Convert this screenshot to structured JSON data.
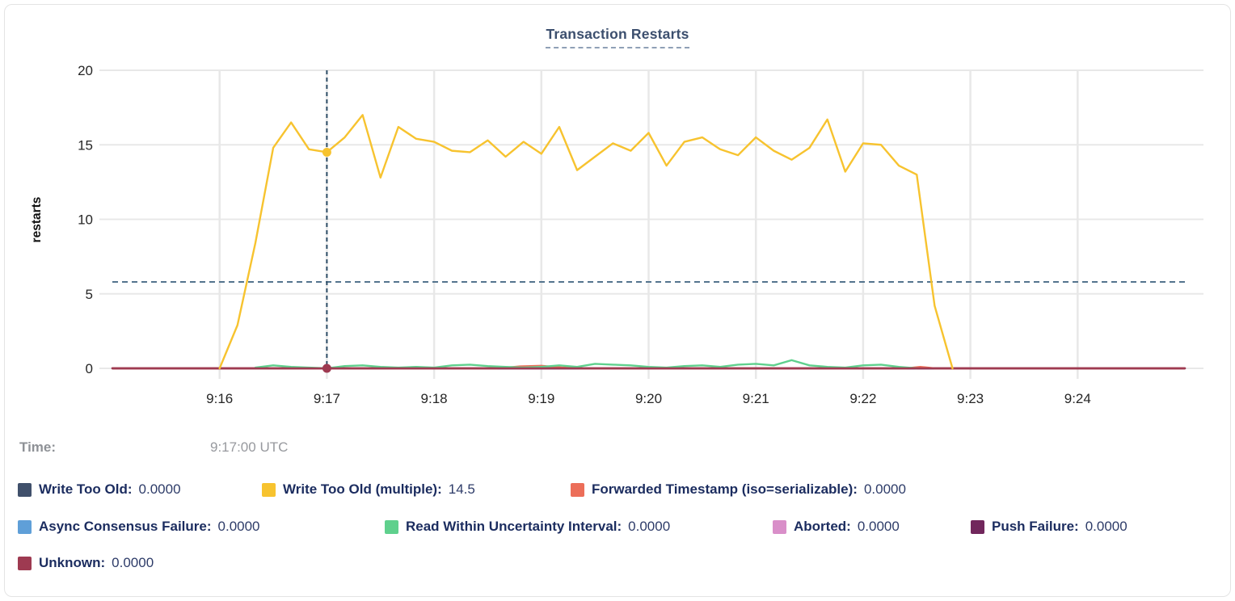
{
  "chart_data": {
    "type": "line",
    "title": "Transaction Restarts",
    "ylabel": "restarts",
    "ylim": [
      0,
      20
    ],
    "yticks": [
      0,
      5,
      10,
      15,
      20
    ],
    "xticks": [
      "9:16",
      "9:17",
      "9:18",
      "9:19",
      "9:20",
      "9:21",
      "9:22",
      "9:23",
      "9:24"
    ],
    "x_domain": [
      "9:15:00",
      "9:25:00"
    ],
    "grid": true,
    "threshold_line": {
      "value": 5.8,
      "style": "dashed",
      "color": "#54748E"
    },
    "hover": {
      "time": "9:17:00 UTC",
      "cursor_x": "9:17:00",
      "line_color": "#2F4F68",
      "dots": [
        {
          "series": "Write Too Old (multiple)",
          "value": 14.5,
          "color": "#F7C32F"
        },
        {
          "series": "Unknown",
          "value": 0,
          "color": "#9E3A51"
        }
      ]
    },
    "series": [
      {
        "name": "Write Too Old",
        "color": "#40506B",
        "constant": 0
      },
      {
        "name": "Async Consensus Failure",
        "color": "#5F9FD8",
        "constant": 0
      },
      {
        "name": "Aborted",
        "color": "#D98FC9",
        "constant": 0
      },
      {
        "name": "Push Failure",
        "color": "#71275C",
        "constant": 0
      },
      {
        "name": "Forwarded Timestamp (iso=serializable)",
        "color": "#EC6E59",
        "points": [
          [
            0,
            0
          ],
          [
            215,
            0
          ],
          [
            228,
            0.13
          ],
          [
            240,
            0.17
          ],
          [
            252,
            0.05
          ],
          [
            262,
            0
          ],
          [
            444,
            0
          ],
          [
            452,
            0.1
          ],
          [
            460,
            0
          ],
          [
            600,
            0
          ]
        ]
      },
      {
        "name": "Read Within Uncertainty Interval",
        "color": "#5FD08D",
        "start_seconds": 80,
        "step_seconds": 10,
        "values": [
          0.05,
          0.2,
          0.1,
          0.05,
          0,
          0.15,
          0.2,
          0.1,
          0.05,
          0.1,
          0.05,
          0.2,
          0.25,
          0.15,
          0.1,
          0.05,
          0.1,
          0.2,
          0.1,
          0.3,
          0.25,
          0.2,
          0.1,
          0.05,
          0.15,
          0.2,
          0.1,
          0.25,
          0.3,
          0.2,
          0.55,
          0.2,
          0.1,
          0.05,
          0.2,
          0.25,
          0.1,
          0
        ]
      },
      {
        "name": "Unknown",
        "color": "#9E3A51",
        "constant": 0
      },
      {
        "name": "Write Too Old (multiple)",
        "color": "#F7C32F",
        "start_seconds": 60,
        "step_seconds": 10,
        "values": [
          0,
          2.9,
          8.4,
          14.8,
          16.5,
          14.7,
          14.5,
          15.5,
          17.0,
          12.8,
          16.2,
          15.4,
          15.2,
          14.6,
          14.5,
          15.3,
          14.2,
          15.2,
          14.4,
          16.2,
          13.3,
          14.2,
          15.1,
          14.6,
          15.8,
          13.6,
          15.2,
          15.5,
          14.7,
          14.3,
          15.5,
          14.6,
          14.0,
          14.8,
          16.7,
          13.2,
          15.1,
          15.0,
          13.6,
          13.0,
          4.2,
          0
        ]
      }
    ]
  },
  "legend": {
    "time_label": "Time:",
    "time_value": "9:17:00 UTC",
    "rows": [
      [
        {
          "name": "Write Too Old",
          "value": "0.0000",
          "color": "#40506B"
        },
        {
          "name": "Write Too Old (multiple)",
          "value": "14.5",
          "color": "#F7C32F"
        },
        {
          "name": "Forwarded Timestamp (iso=serializable)",
          "value": "0.0000",
          "color": "#EC6E59"
        }
      ],
      [
        {
          "name": "Async Consensus Failure",
          "value": "0.0000",
          "color": "#5F9FD8"
        },
        {
          "name": "Read Within Uncertainty Interval",
          "value": "0.0000",
          "color": "#5FD08D"
        },
        {
          "name": "Aborted",
          "value": "0.0000",
          "color": "#D98FC9"
        },
        {
          "name": "Push Failure",
          "value": "0.0000",
          "color": "#71275C"
        }
      ],
      [
        {
          "name": "Unknown",
          "value": "0.0000",
          "color": "#9E3A51"
        }
      ]
    ]
  }
}
